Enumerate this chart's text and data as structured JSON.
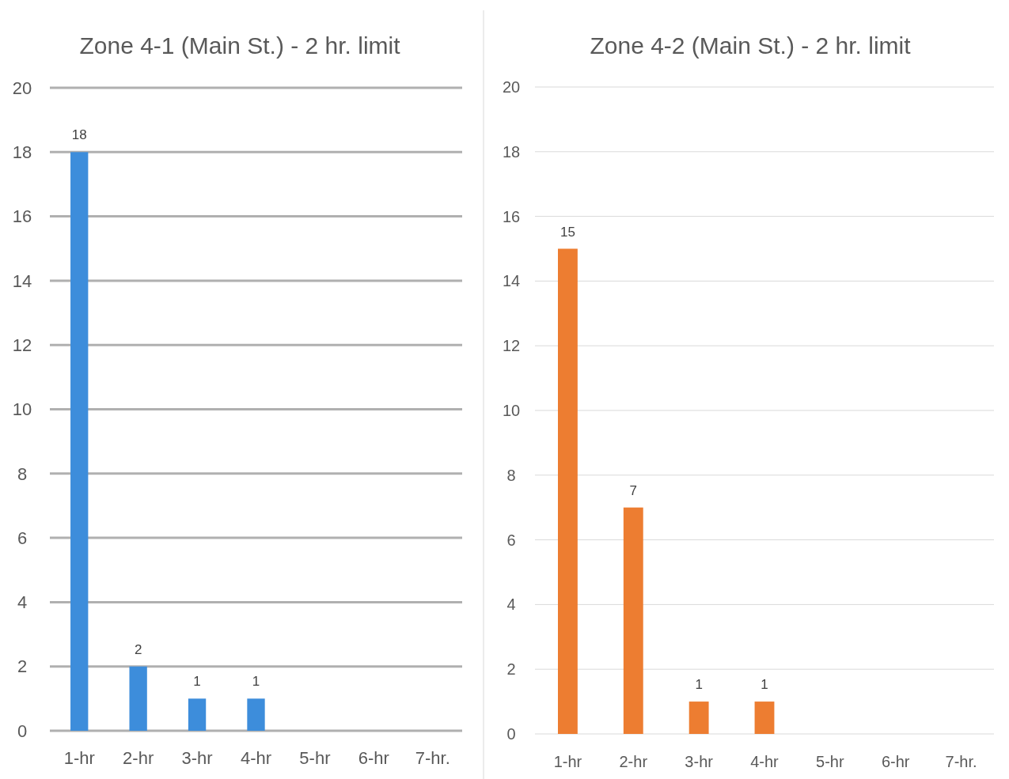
{
  "chart_data": [
    {
      "type": "bar",
      "title": "Zone 4-1 (Main St.) - 2 hr. limit",
      "categories": [
        "1-hr",
        "2-hr",
        "3-hr",
        "4-hr",
        "5-hr",
        "6-hr",
        "7-hr."
      ],
      "values": [
        18,
        2,
        1,
        1,
        0,
        0,
        0
      ],
      "value_labels": [
        "18",
        "2",
        "1",
        "1",
        null,
        null,
        null
      ],
      "color": "#3d8ddb",
      "ylim": [
        0,
        20
      ],
      "yticks": [
        0,
        2,
        4,
        6,
        8,
        10,
        12,
        14,
        16,
        18,
        20
      ],
      "grid": "y"
    },
    {
      "type": "bar",
      "title": "Zone 4-2 (Main St.) - 2 hr. limit",
      "categories": [
        "1-hr",
        "2-hr",
        "3-hr",
        "4-hr",
        "5-hr",
        "6-hr",
        "7-hr."
      ],
      "values": [
        15,
        7,
        1,
        1,
        0,
        0,
        0
      ],
      "value_labels": [
        "15",
        "7",
        "1",
        "1",
        null,
        null,
        null
      ],
      "color": "#ed7d31",
      "ylim": [
        0,
        20
      ],
      "yticks": [
        0,
        2,
        4,
        6,
        8,
        10,
        12,
        14,
        16,
        18,
        20
      ],
      "grid": "y"
    }
  ]
}
